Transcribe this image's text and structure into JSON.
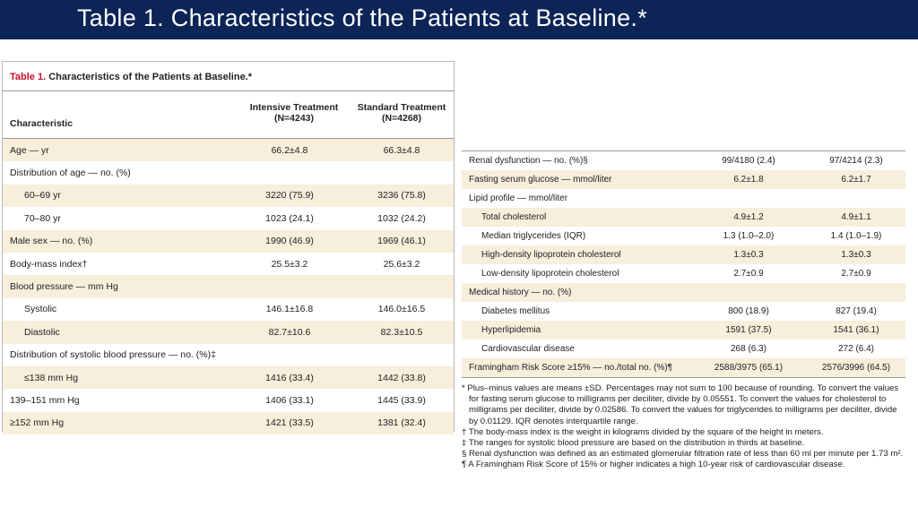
{
  "header": {
    "title": "Table 1. Characteristics of the Patients at Baseline.*"
  },
  "table": {
    "label": "Table 1.",
    "title": "Characteristics of the Patients at Baseline.*",
    "columns": [
      "Characteristic",
      "Intensive Treatment (N=4243)",
      "Standard Treatment (N=4268)"
    ],
    "left_rows": [
      [
        "Age — yr",
        "66.2±4.8",
        "66.3±4.8"
      ],
      [
        "Distribution of age — no. (%)"
      ],
      [
        "60–69 yr",
        "3220 (75.9)",
        "3236 (75.8)"
      ],
      [
        "70–80 yr",
        "1023 (24.1)",
        "1032 (24.2)"
      ],
      [
        "Male sex — no. (%)",
        "1990 (46.9)",
        "1969 (46.1)"
      ],
      [
        "Body-mass index†",
        "25.5±3.2",
        "25.6±3.2"
      ],
      [
        "Blood pressure — mm Hg"
      ],
      [
        "Systolic",
        "146.1±16.8",
        "146.0±16.5"
      ],
      [
        "Diastolic",
        "82.7±10.6",
        "82.3±10.5"
      ],
      [
        "Distribution of systolic blood pressure — no. (%)‡"
      ],
      [
        "≤138 mm Hg",
        "1416 (33.4)",
        "1442 (33.8)"
      ],
      [
        "139–151 mm Hg",
        "1406 (33.1)",
        "1445 (33.9)"
      ],
      [
        "≥152 mm Hg",
        "1421 (33.5)",
        "1381 (32.4)"
      ]
    ],
    "right_rows": [
      [
        "Renal dysfunction — no. (%)§",
        "99/4180 (2.4)",
        "97/4214 (2.3)"
      ],
      [
        "Fasting serum glucose — mmol/liter",
        "6.2±1.8",
        "6.2±1.7"
      ],
      [
        "Lipid profile — mmol/liter"
      ],
      [
        "Total cholesterol",
        "4.9±1.2",
        "4.9±1.1"
      ],
      [
        "Median triglycerides (IQR)",
        "1.3 (1.0–2.0)",
        "1.4 (1.0–1.9)"
      ],
      [
        "High-density lipoprotein cholesterol",
        "1.3±0.3",
        "1.3±0.3"
      ],
      [
        "Low-density lipoprotein cholesterol",
        "2.7±0.9",
        "2.7±0.9"
      ],
      [
        "Medical history — no. (%)"
      ],
      [
        "Diabetes mellitus",
        "800 (18.9)",
        "827 (19.4)"
      ],
      [
        "Hyperlipidemia",
        "1591 (37.5)",
        "1541 (36.1)"
      ],
      [
        "Cardiovascular disease",
        "268 (6.3)",
        "272 (6.4)"
      ],
      [
        "Framingham Risk Score ≥15% — no./total no. (%)¶",
        "2588/3975 (65.1)",
        "2576/3996 (64.5)"
      ]
    ]
  },
  "footnotes": [
    "* Plus–minus values are means ±SD. Percentages may not sum to 100 because of rounding. To convert the values for fasting serum glucose to milligrams per deciliter, divide by 0.05551. To convert the values for cholesterol to milligrams per deciliter, divide by 0.02586. To convert the values for triglycerides to milligrams per deciliter, divide by 0.01129. IQR denotes interquartile range.",
    "† The body-mass index is the weight in kilograms divided by the square of the height in meters.",
    "‡ The ranges for systolic blood pressure are based on the distribution in thirds at baseline.",
    "§ Renal dysfunction was defined as an estimated glomerular filtration rate of less than 60 ml per minute per 1.73 m².",
    "¶ A Framingham Risk Score of 15% or higher indicates a high 10-year risk of cardiovascular disease."
  ]
}
